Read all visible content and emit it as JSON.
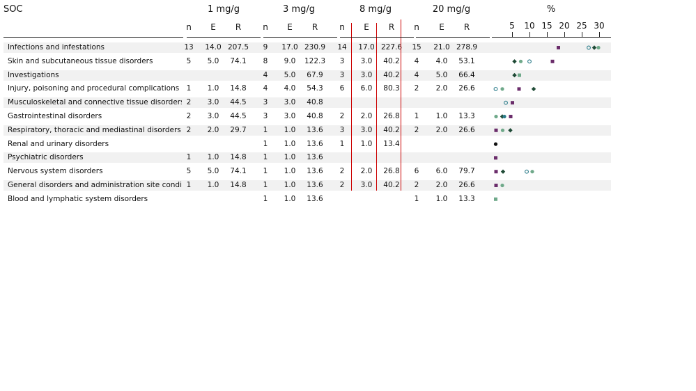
{
  "soc_title": "SOC",
  "groups": [
    "1 mg/g",
    "3 mg/g",
    "8 mg/g",
    "20 mg/g"
  ],
  "col_heads": [
    "n",
    "E",
    "R"
  ],
  "pct_title": "%",
  "colors": {
    "purple": "#6b2d6b",
    "dark_green": "#1f4a36",
    "green": "#6fa98a",
    "teal": "#2b7c8a",
    "black": "#111111",
    "red_line": "#cc0000",
    "band": "#f1f1f1"
  },
  "chart_data": {
    "type": "table",
    "x_axis": {
      "label": "%",
      "ticks": [
        5,
        10,
        15,
        20,
        25,
        30
      ],
      "range": [
        0,
        32
      ]
    },
    "rows": [
      {
        "soc": "Infections and infestations",
        "cells": [
          [
            "13",
            "14.0",
            "207.5"
          ],
          [
            "9",
            "17.0",
            "230.9"
          ],
          [
            "14",
            "17.0",
            "227.6"
          ],
          [
            "15",
            "21.0",
            "278.9"
          ]
        ]
      },
      {
        "soc": "Skin and subcutaneous tissue disorders",
        "cells": [
          [
            "5",
            "5.0",
            "74.1"
          ],
          [
            "8",
            "9.0",
            "122.3"
          ],
          [
            "3",
            "3.0",
            "40.2"
          ],
          [
            "4",
            "4.0",
            "53.1"
          ]
        ]
      },
      {
        "soc": "Investigations",
        "cells": [
          [
            "",
            "",
            ""
          ],
          [
            "4",
            "5.0",
            "67.9"
          ],
          [
            "3",
            "3.0",
            "40.2"
          ],
          [
            "4",
            "5.0",
            "66.4"
          ]
        ]
      },
      {
        "soc": "Injury, poisoning and procedural complications",
        "cells": [
          [
            "1",
            "1.0",
            "14.8"
          ],
          [
            "4",
            "4.0",
            "54.3"
          ],
          [
            "6",
            "6.0",
            "80.3"
          ],
          [
            "2",
            "2.0",
            "26.6"
          ]
        ]
      },
      {
        "soc": "Musculoskeletal and connective tissue disorders",
        "cells": [
          [
            "2",
            "3.0",
            "44.5"
          ],
          [
            "3",
            "3.0",
            "40.8"
          ],
          [
            "",
            "",
            ""
          ],
          [
            "",
            "",
            ""
          ]
        ]
      },
      {
        "soc": "Gastrointestinal disorders",
        "cells": [
          [
            "2",
            "3.0",
            "44.5"
          ],
          [
            "3",
            "3.0",
            "40.8"
          ],
          [
            "2",
            "2.0",
            "26.8"
          ],
          [
            "1",
            "1.0",
            "13.3"
          ]
        ]
      },
      {
        "soc": "Respiratory, thoracic and mediastinal disorders",
        "cells": [
          [
            "2",
            "2.0",
            "29.7"
          ],
          [
            "1",
            "1.0",
            "13.6"
          ],
          [
            "3",
            "3.0",
            "40.2"
          ],
          [
            "2",
            "2.0",
            "26.6"
          ]
        ]
      },
      {
        "soc": "Renal and urinary disorders",
        "cells": [
          [
            "",
            "",
            ""
          ],
          [
            "1",
            "1.0",
            "13.6"
          ],
          [
            "1",
            "1.0",
            "13.4"
          ],
          [
            "",
            "",
            ""
          ]
        ]
      },
      {
        "soc": "Psychiatric disorders",
        "cells": [
          [
            "1",
            "1.0",
            "14.8"
          ],
          [
            "1",
            "1.0",
            "13.6"
          ],
          [
            "",
            "",
            ""
          ],
          [
            "",
            "",
            ""
          ]
        ]
      },
      {
        "soc": "Nervous system disorders",
        "cells": [
          [
            "5",
            "5.0",
            "74.1"
          ],
          [
            "1",
            "1.0",
            "13.6"
          ],
          [
            "2",
            "2.0",
            "26.8"
          ],
          [
            "6",
            "6.0",
            "79.7"
          ]
        ]
      },
      {
        "soc": "General disorders and administration site conditio",
        "cells": [
          [
            "1",
            "1.0",
            "14.8"
          ],
          [
            "1",
            "1.0",
            "13.6"
          ],
          [
            "2",
            "3.0",
            "40.2"
          ],
          [
            "2",
            "2.0",
            "26.6"
          ]
        ]
      },
      {
        "soc": "Blood and lymphatic system disorders",
        "cells": [
          [
            "",
            "",
            ""
          ],
          [
            "1",
            "1.0",
            "13.6"
          ],
          [
            "",
            "",
            ""
          ],
          [
            "1",
            "1.0",
            "13.3"
          ]
        ]
      }
    ],
    "points": [
      {
        "row": 0,
        "markers": [
          {
            "shape": "square",
            "color": "purple",
            "x": 18.3
          },
          {
            "shape": "circle-open",
            "color": "teal",
            "x": 27.0
          },
          {
            "shape": "diamond",
            "color": "dark_green",
            "x": 28.6
          },
          {
            "shape": "circle",
            "color": "green",
            "x": 29.8
          }
        ]
      },
      {
        "row": 1,
        "markers": [
          {
            "shape": "diamond",
            "color": "dark_green",
            "x": 5.7
          },
          {
            "shape": "circle",
            "color": "green",
            "x": 7.5
          },
          {
            "shape": "circle-open",
            "color": "teal",
            "x": 10.0
          },
          {
            "shape": "square",
            "color": "purple",
            "x": 16.6
          }
        ]
      },
      {
        "row": 2,
        "markers": [
          {
            "shape": "diamond",
            "color": "dark_green",
            "x": 5.7
          },
          {
            "shape": "square",
            "color": "green",
            "x": 7.1
          }
        ]
      },
      {
        "row": 3,
        "markers": [
          {
            "shape": "circle-open",
            "color": "teal",
            "x": 0.3
          },
          {
            "shape": "circle",
            "color": "green",
            "x": 2.2
          },
          {
            "shape": "square",
            "color": "purple",
            "x": 7.0
          },
          {
            "shape": "diamond",
            "color": "dark_green",
            "x": 11.2
          }
        ]
      },
      {
        "row": 4,
        "markers": [
          {
            "shape": "circle-open",
            "color": "teal",
            "x": 3.2
          },
          {
            "shape": "square",
            "color": "purple",
            "x": 5.1
          }
        ]
      },
      {
        "row": 5,
        "markers": [
          {
            "shape": "circle",
            "color": "green",
            "x": 0.4
          },
          {
            "shape": "diamond",
            "color": "dark_green",
            "x": 2.2
          },
          {
            "shape": "circle",
            "color": "teal",
            "x": 2.8
          },
          {
            "shape": "square",
            "color": "purple",
            "x": 4.6
          }
        ]
      },
      {
        "row": 6,
        "markers": [
          {
            "shape": "square",
            "color": "purple",
            "x": 0.4
          },
          {
            "shape": "circle",
            "color": "green",
            "x": 2.3
          },
          {
            "shape": "diamond",
            "color": "dark_green",
            "x": 4.5
          }
        ]
      },
      {
        "row": 7,
        "markers": [
          {
            "shape": "circle",
            "color": "black",
            "x": 0.3
          }
        ]
      },
      {
        "row": 8,
        "markers": [
          {
            "shape": "square",
            "color": "purple",
            "x": 0.3
          }
        ]
      },
      {
        "row": 9,
        "markers": [
          {
            "shape": "square",
            "color": "purple",
            "x": 0.4
          },
          {
            "shape": "diamond",
            "color": "dark_green",
            "x": 2.4
          },
          {
            "shape": "circle-open",
            "color": "teal",
            "x": 9.2
          },
          {
            "shape": "circle",
            "color": "green",
            "x": 10.8
          }
        ]
      },
      {
        "row": 10,
        "markers": [
          {
            "shape": "square",
            "color": "purple",
            "x": 0.4
          },
          {
            "shape": "circle",
            "color": "green",
            "x": 2.2
          }
        ]
      },
      {
        "row": 11,
        "markers": [
          {
            "shape": "square",
            "color": "green",
            "x": 0.3
          }
        ]
      }
    ]
  }
}
